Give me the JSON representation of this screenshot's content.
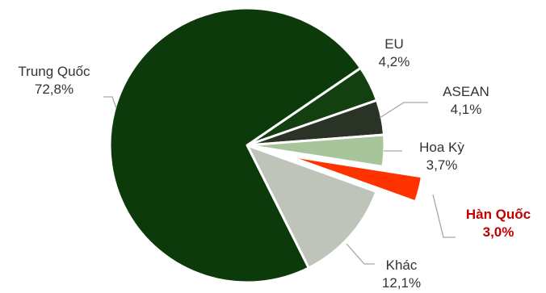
{
  "chart_data": {
    "type": "pie",
    "slices": [
      {
        "name": "EU",
        "value_label": "4,2%",
        "value": 4.2,
        "color": "#143f10"
      },
      {
        "name": "ASEAN",
        "value_label": "4,1%",
        "value": 4.1,
        "color": "#2a3326"
      },
      {
        "name": "Hoa Kỳ",
        "value_label": "3,7%",
        "value": 3.7,
        "color": "#a8c49a"
      },
      {
        "name": "Hàn Quốc",
        "value_label": "3,0%",
        "value": 3.0,
        "color": "#ff3300",
        "highlight": true,
        "exploded": true
      },
      {
        "name": "Khác",
        "value_label": "12,1%",
        "value": 12.1,
        "color": "#bfc4bb"
      },
      {
        "name": "Trung Quốc",
        "value_label": "72,8%",
        "value": 72.8,
        "color": "#0d3a0b"
      }
    ],
    "leader_line_color": "#a6a6a6",
    "highlight_label_color": "#c00000"
  }
}
